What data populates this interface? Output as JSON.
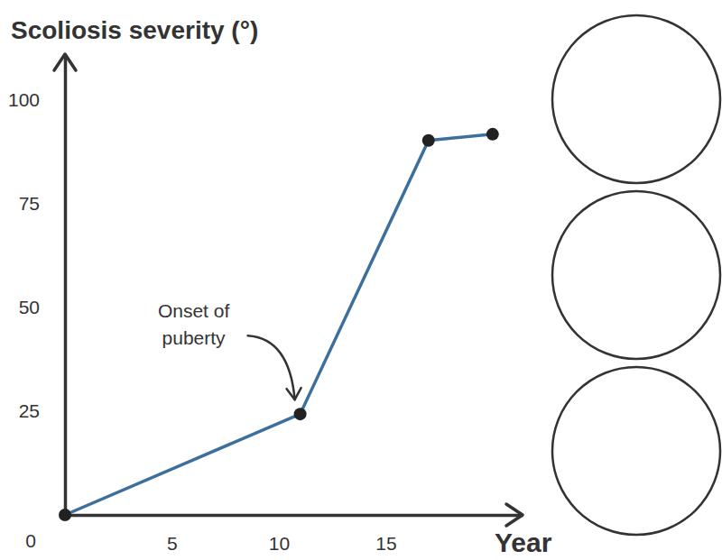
{
  "chart_data": {
    "type": "line",
    "ylabel": "Scoliosis severity (°)",
    "xlabel": "Year",
    "x": [
      0,
      11,
      17,
      20
    ],
    "values": [
      0,
      24.3,
      90.2,
      91.7
    ],
    "color": "#3d6f9c",
    "marker": "circle",
    "xlim": [
      0,
      21.4
    ],
    "ylim": [
      0,
      111
    ],
    "xticks": [
      5,
      10,
      15
    ],
    "yticks": [
      0,
      25,
      50,
      75,
      100
    ],
    "grid": false,
    "annotations": [
      {
        "lines": [
          "Onset of",
          "puberty"
        ],
        "x": 11,
        "y": 24.3
      }
    ]
  }
}
